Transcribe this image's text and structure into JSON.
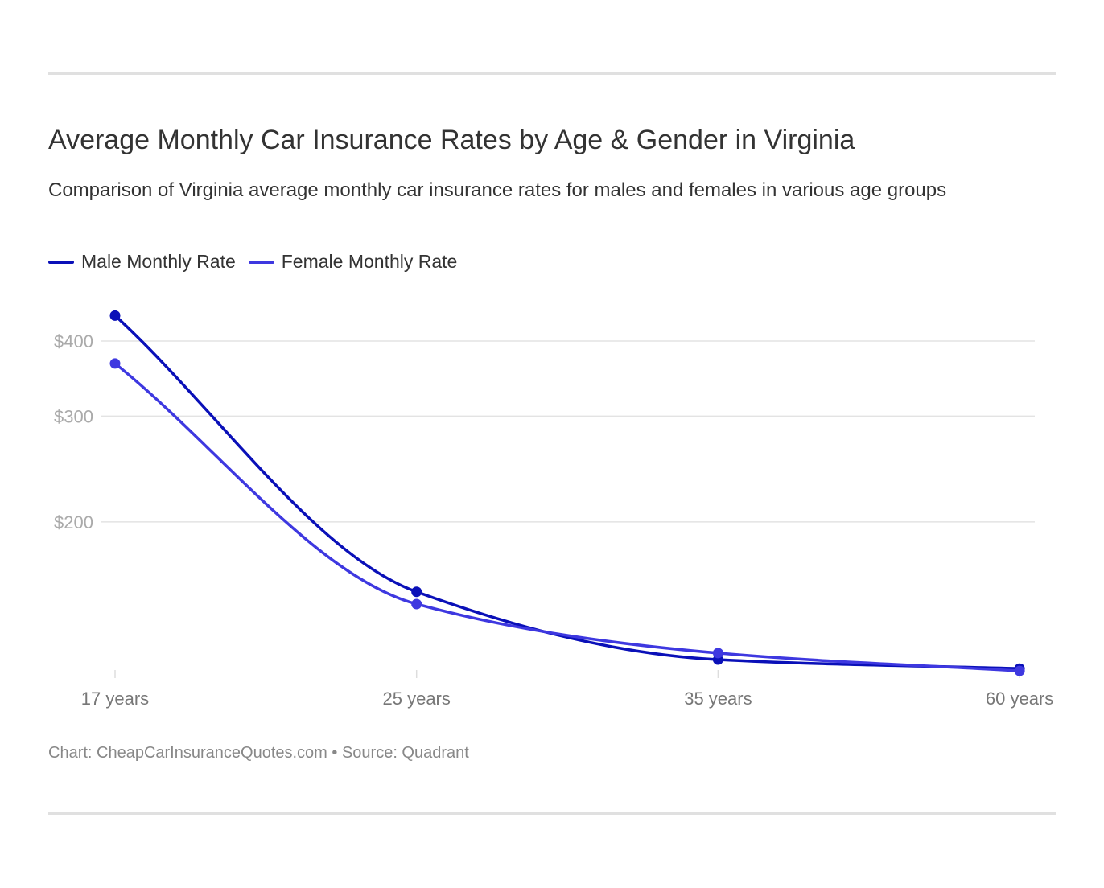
{
  "title": "Average Monthly Car Insurance Rates by Age & Gender in Virginia",
  "subtitle": "Comparison of Virginia average monthly car insurance rates for males and females in various age groups",
  "footer": "Chart: CheapCarInsuranceQuotes.com • Source: Quadrant",
  "chart_data": {
    "type": "line",
    "title": "Average Monthly Car Insurance Rates by Age & Gender in Virginia",
    "categories": [
      "17 years",
      "25 years",
      "35 years",
      "60 years"
    ],
    "yscale": "log",
    "yticks": [
      200,
      300,
      400
    ],
    "ytick_labels": [
      "$200",
      "$300",
      "$400"
    ],
    "grid": true,
    "legend": "top-left",
    "series": [
      {
        "name": "Male Monthly Rate",
        "color": "#0a10b8",
        "values": [
          441,
          153,
          118,
          114
        ]
      },
      {
        "name": "Female Monthly Rate",
        "color": "#3e38e0",
        "values": [
          367,
          146,
          121,
          113
        ]
      }
    ]
  }
}
